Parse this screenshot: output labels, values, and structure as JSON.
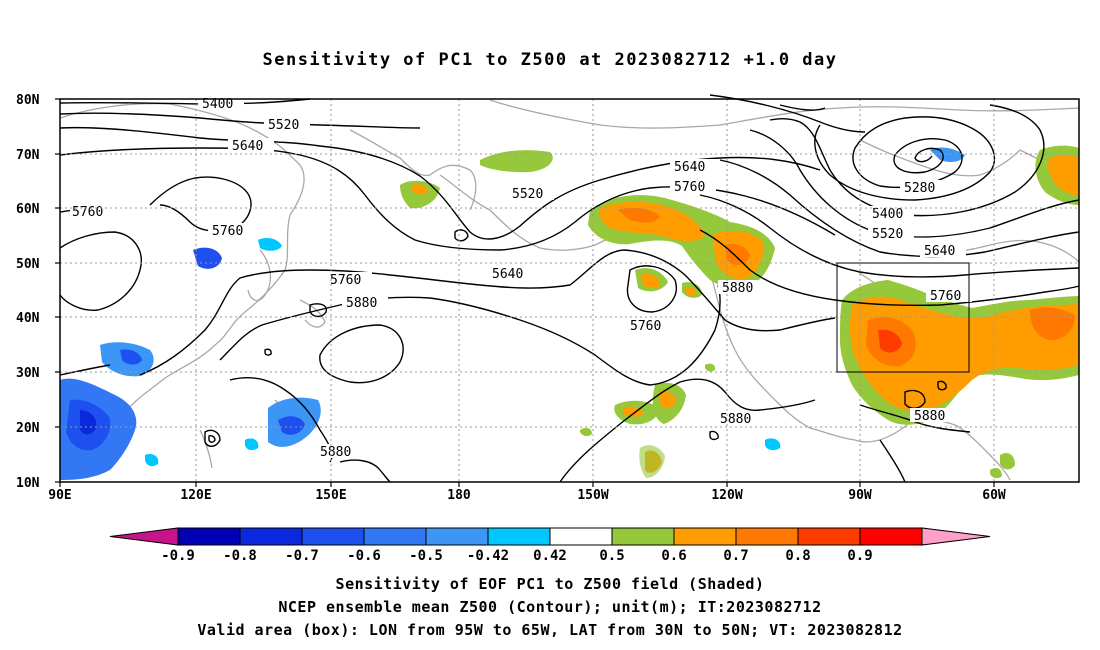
{
  "title": "Sensitivity of PC1 to Z500 at 2023082712 +1.0 day",
  "lat_labels": [
    "80N",
    "70N",
    "60N",
    "50N",
    "40N",
    "30N",
    "20N",
    "10N"
  ],
  "lon_labels": [
    "90E",
    "120E",
    "150E",
    "180",
    "150W",
    "120W",
    "90W",
    "60W"
  ],
  "contour_labels": {
    "c5400a": "5400",
    "c5520a": "5520",
    "c5640a": "5640",
    "c5760a": "5760",
    "c5760b": "5760",
    "c5520b": "5520",
    "c5640b": "5640",
    "c5760c": "5760",
    "c5880a": "5880",
    "c5880b": "5880",
    "c5640c": "5640",
    "c5760d": "5760",
    "c5760e": "5760",
    "c5880c": "5880",
    "c5280": "5280",
    "c5400b": "5400",
    "c5520c": "5520",
    "c5640d": "5640",
    "c5760f": "5760",
    "c5880d": "5880",
    "c5880e": "5880"
  },
  "colorbar": {
    "labels": [
      "-0.9",
      "-0.8",
      "-0.7",
      "-0.6",
      "-0.5",
      "-0.42",
      "0.42",
      "0.5",
      "0.6",
      "0.7",
      "0.8",
      "0.9"
    ],
    "colors": [
      "#c8148c",
      "#0000b4",
      "#0a28dc",
      "#1e50f0",
      "#3278f5",
      "#3c96f5",
      "#00c8ff",
      "#ffffff",
      "#96c83c",
      "#ff9c00",
      "#ff7800",
      "#ff3c00",
      "#ff0000",
      "#ffa0c8"
    ]
  },
  "captions": {
    "line1": "Sensitivity of EOF PC1 to Z500 field (Shaded)",
    "line2": "NCEP ensemble mean Z500 (Contour); unit(m); IT:2023082712",
    "line3": "Valid area (box): LON from 95W to 65W, LAT from 30N to 50N; VT: 2023082812"
  }
}
